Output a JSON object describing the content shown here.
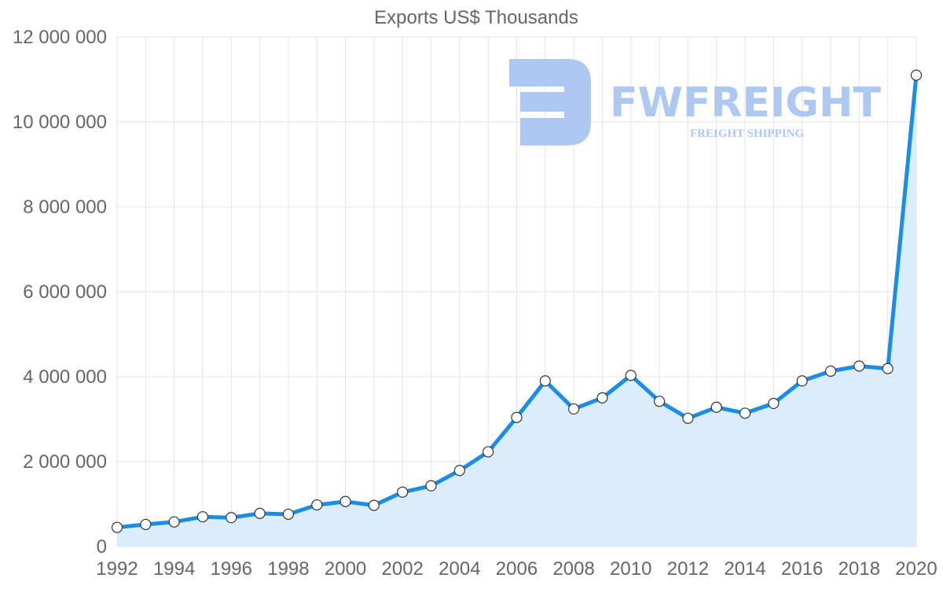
{
  "chart_data": {
    "type": "area",
    "title": "Exports US$ Thousands",
    "xlabel": "",
    "ylabel": "",
    "x": [
      1992,
      1993,
      1994,
      1995,
      1996,
      1997,
      1998,
      1999,
      2000,
      2001,
      2002,
      2003,
      2004,
      2005,
      2006,
      2007,
      2008,
      2009,
      2010,
      2011,
      2012,
      2013,
      2014,
      2015,
      2016,
      2017,
      2018,
      2019,
      2020
    ],
    "series": [
      {
        "name": "Exports US$ Thousands",
        "values": [
          450000,
          520000,
          580000,
          700000,
          680000,
          780000,
          760000,
          980000,
          1060000,
          970000,
          1280000,
          1430000,
          1790000,
          2230000,
          3040000,
          3900000,
          3240000,
          3500000,
          4030000,
          3420000,
          3020000,
          3280000,
          3140000,
          3370000,
          3900000,
          4130000,
          4250000,
          4190000,
          11100000
        ]
      }
    ],
    "xlim": [
      1992,
      2020
    ],
    "ylim": [
      0,
      12000000
    ],
    "x_ticks": [
      "1992",
      "1994",
      "1996",
      "1998",
      "2000",
      "2002",
      "2004",
      "2006",
      "2008",
      "2010",
      "2012",
      "2014",
      "2016",
      "2018",
      "2020"
    ],
    "y_ticks": [
      "0",
      "2 000 000",
      "4 000 000",
      "6 000 000",
      "8 000 000",
      "10 000 000",
      "12 000 000"
    ],
    "grid": true,
    "colors": {
      "line": "#1a8ceb",
      "fill": "#d6ebfb",
      "marker_fill": "#ffffff",
      "marker_stroke": "#333333",
      "watermark": "#a9c6f2"
    }
  },
  "watermark": {
    "brand": "FWFREIGHT",
    "tagline": "FREIGHT SHIPPING"
  }
}
